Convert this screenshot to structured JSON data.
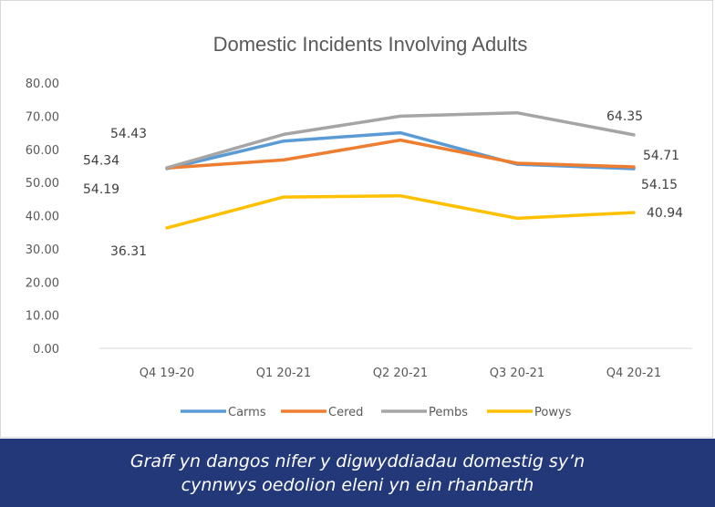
{
  "chart_data": {
    "type": "line",
    "title": "Domestic Incidents Involving Adults",
    "xlabel": "",
    "ylabel": "",
    "categories": [
      "Q4 19-20",
      "Q1 20-21",
      "Q2 20-21",
      "Q3 20-21",
      "Q4 20-21"
    ],
    "ylim": [
      0,
      80
    ],
    "yticks": [
      "0.00",
      "10.00",
      "20.00",
      "30.00",
      "40.00",
      "50.00",
      "60.00",
      "70.00",
      "80.00"
    ],
    "grid": false,
    "legend": "bottom",
    "series": [
      {
        "name": "Carms",
        "color": "#5b9bd5",
        "values": [
          54.19,
          62.5,
          65.0,
          55.5,
          54.15
        ],
        "labels": [
          {
            "index": 0,
            "text": "54.19"
          },
          {
            "index": 4,
            "text": "54.15"
          }
        ]
      },
      {
        "name": "Cered",
        "color": "#ed7d31",
        "values": [
          54.34,
          56.8,
          62.8,
          55.8,
          54.71
        ],
        "labels": [
          {
            "index": 0,
            "text": "54.34"
          },
          {
            "index": 4,
            "text": "54.71"
          }
        ]
      },
      {
        "name": "Pembs",
        "color": "#a5a5a5",
        "values": [
          54.43,
          64.5,
          70.0,
          71.0,
          64.35
        ],
        "labels": [
          {
            "index": 0,
            "text": "54.43"
          },
          {
            "index": 4,
            "text": "64.35"
          }
        ]
      },
      {
        "name": "Powys",
        "color": "#ffc000",
        "values": [
          36.31,
          45.6,
          46.0,
          39.2,
          40.94
        ],
        "labels": [
          {
            "index": 0,
            "text": "36.31"
          },
          {
            "index": 4,
            "text": "40.94"
          }
        ]
      }
    ]
  },
  "caption": {
    "line1": "Graff yn dangos nifer y digwyddiadau domestig sy’n",
    "line2": "cynnwys oedolion eleni yn ein rhanbarth"
  }
}
